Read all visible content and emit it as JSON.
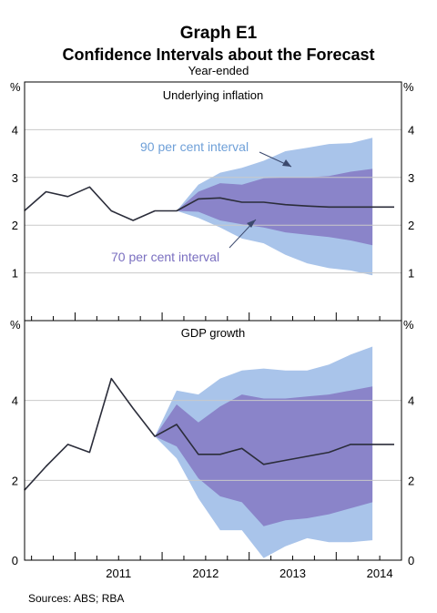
{
  "header": {
    "title": "Graph E1",
    "subtitle": "Confidence Intervals about the Forecast",
    "note": "Year-ended"
  },
  "footer": {
    "source": "Sources: ABS; RBA"
  },
  "colors": {
    "interval_90": "#a9c4ea",
    "interval_70": "#8a84c9",
    "line": "#2b2d3a",
    "annotation_90": "#6fa0d8",
    "annotation_70": "#7a6fc0"
  },
  "chart_data": [
    {
      "type": "area",
      "title": "Underlying inflation",
      "unit_left": "%",
      "unit_right": "%",
      "ylim": [
        0,
        5
      ],
      "yticks": [
        1,
        2,
        3,
        4
      ],
      "x_tick_labels": [
        "2011",
        "2012",
        "2013",
        "2014"
      ],
      "annotations": [
        "90 per cent interval",
        "70 per cent interval"
      ],
      "series": [
        {
          "name": "Underlying inflation",
          "x": [
            "2010-06",
            "2010-09",
            "2010-12",
            "2011-03",
            "2011-06",
            "2011-09",
            "2011-12",
            "2012-03",
            "2012-06",
            "2012-09",
            "2012-12",
            "2013-03",
            "2013-06",
            "2013-09",
            "2013-12",
            "2014-03",
            "2014-06",
            "2014-09"
          ],
          "values": [
            2.3,
            2.7,
            2.6,
            2.8,
            2.3,
            2.1,
            2.3,
            2.3,
            2.55,
            2.57,
            2.48,
            2.48,
            2.43,
            2.4,
            2.38,
            2.38,
            2.38,
            2.38
          ]
        }
      ],
      "intervals": {
        "x": [
          "2012-03",
          "2012-06",
          "2012-09",
          "2012-12",
          "2013-03",
          "2013-06",
          "2013-09",
          "2013-12",
          "2014-03",
          "2014-06"
        ],
        "p90_upper": [
          2.3,
          2.85,
          3.1,
          3.2,
          3.35,
          3.55,
          3.62,
          3.7,
          3.72,
          3.83
        ],
        "p70_upper": [
          2.3,
          2.7,
          2.88,
          2.85,
          2.98,
          3.0,
          3.0,
          3.03,
          3.12,
          3.18
        ],
        "p70_lower": [
          2.3,
          2.28,
          2.1,
          2.02,
          1.95,
          1.85,
          1.8,
          1.75,
          1.68,
          1.58
        ],
        "p90_lower": [
          2.3,
          2.15,
          1.95,
          1.72,
          1.62,
          1.38,
          1.2,
          1.1,
          1.05,
          0.95
        ]
      }
    },
    {
      "type": "area",
      "title": "GDP growth",
      "unit_left": "%",
      "unit_right": "%",
      "ylim": [
        0,
        6
      ],
      "yticks": [
        0,
        2,
        4
      ],
      "x_tick_labels": [
        "2011",
        "2012",
        "2013",
        "2014"
      ],
      "series": [
        {
          "name": "GDP growth",
          "x": [
            "2010-06",
            "2010-09",
            "2010-12",
            "2011-03",
            "2011-06",
            "2011-09",
            "2011-12",
            "2012-03",
            "2012-06",
            "2012-09",
            "2012-12",
            "2013-03",
            "2013-06",
            "2013-09",
            "2013-12",
            "2014-03",
            "2014-06",
            "2014-09"
          ],
          "values": [
            1.75,
            2.35,
            2.9,
            2.7,
            4.55,
            3.8,
            3.1,
            3.4,
            2.65,
            2.65,
            2.8,
            2.4,
            2.5,
            2.6,
            2.7,
            2.9,
            2.9,
            2.9
          ]
        }
      ],
      "intervals": {
        "x": [
          "2011-12",
          "2012-03",
          "2012-06",
          "2012-09",
          "2012-12",
          "2013-03",
          "2013-06",
          "2013-09",
          "2013-12",
          "2014-03",
          "2014-06"
        ],
        "p90_upper": [
          3.1,
          4.25,
          4.15,
          4.55,
          4.75,
          4.8,
          4.75,
          4.75,
          4.9,
          5.15,
          5.35
        ],
        "p70_upper": [
          3.1,
          3.9,
          3.45,
          3.85,
          4.15,
          4.05,
          4.05,
          4.1,
          4.15,
          4.25,
          4.35
        ],
        "p70_lower": [
          3.1,
          2.85,
          2.05,
          1.6,
          1.45,
          0.85,
          1.0,
          1.05,
          1.15,
          1.3,
          1.45
        ],
        "p90_lower": [
          3.1,
          2.55,
          1.55,
          0.75,
          0.75,
          0.05,
          0.35,
          0.55,
          0.45,
          0.45,
          0.5
        ]
      }
    }
  ]
}
